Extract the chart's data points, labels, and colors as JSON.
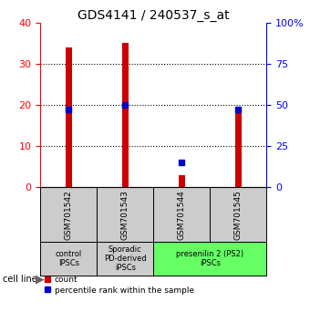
{
  "title": "GDS4141 / 240537_s_at",
  "samples": [
    "GSM701542",
    "GSM701543",
    "GSM701544",
    "GSM701545"
  ],
  "counts": [
    34,
    35,
    3,
    19
  ],
  "percentiles": [
    47,
    50,
    15,
    47
  ],
  "ylim_left": [
    0,
    40
  ],
  "ylim_right": [
    0,
    100
  ],
  "yticks_left": [
    0,
    10,
    20,
    30,
    40
  ],
  "yticks_right": [
    0,
    25,
    50,
    75,
    100
  ],
  "ytick_right_labels": [
    "0",
    "25",
    "50",
    "75",
    "100%"
  ],
  "bar_color": "#cc0000",
  "dot_color": "#0000cc",
  "bar_width": 0.12,
  "dot_size": 18,
  "groups": [
    {
      "label": "control\nIPSCs",
      "samples": [
        0
      ],
      "color": "#cccccc"
    },
    {
      "label": "Sporadic\nPD-derived\niPSCs",
      "samples": [
        1
      ],
      "color": "#cccccc"
    },
    {
      "label": "presenilin 2 (PS2)\niPSCs",
      "samples": [
        2,
        3
      ],
      "color": "#66ff66"
    }
  ],
  "cell_line_label": "cell line",
  "legend_count_label": "count",
  "legend_percentile_label": "percentile rank within the sample",
  "title_fontsize": 10,
  "axis_fontsize": 8,
  "tick_fontsize": 8,
  "label_fontsize": 7,
  "group_label_fontsize": 6,
  "sample_label_fontsize": 6.5
}
